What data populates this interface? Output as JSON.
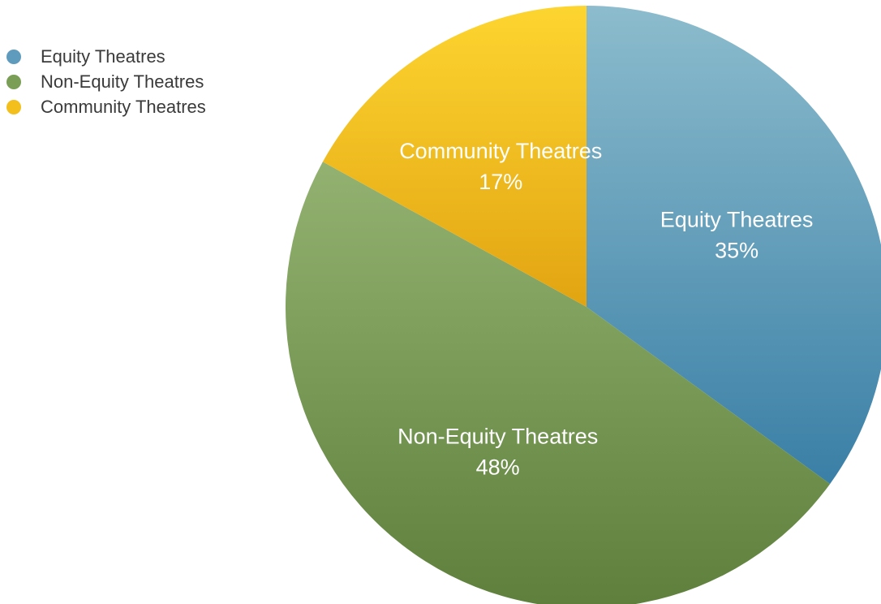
{
  "chart_data": {
    "type": "pie",
    "categories": [
      "Equity Theatres",
      "Non-Equity Theatres",
      "Community Theatres"
    ],
    "values": [
      35,
      48,
      17
    ],
    "value_labels": [
      "35%",
      "48%",
      "17%"
    ],
    "colors": [
      "#5f9bbd",
      "#7a9e56",
      "#f2bf1c"
    ],
    "legend_position": "top-left",
    "start_angle": "12 o'clock",
    "direction": "clockwise"
  }
}
